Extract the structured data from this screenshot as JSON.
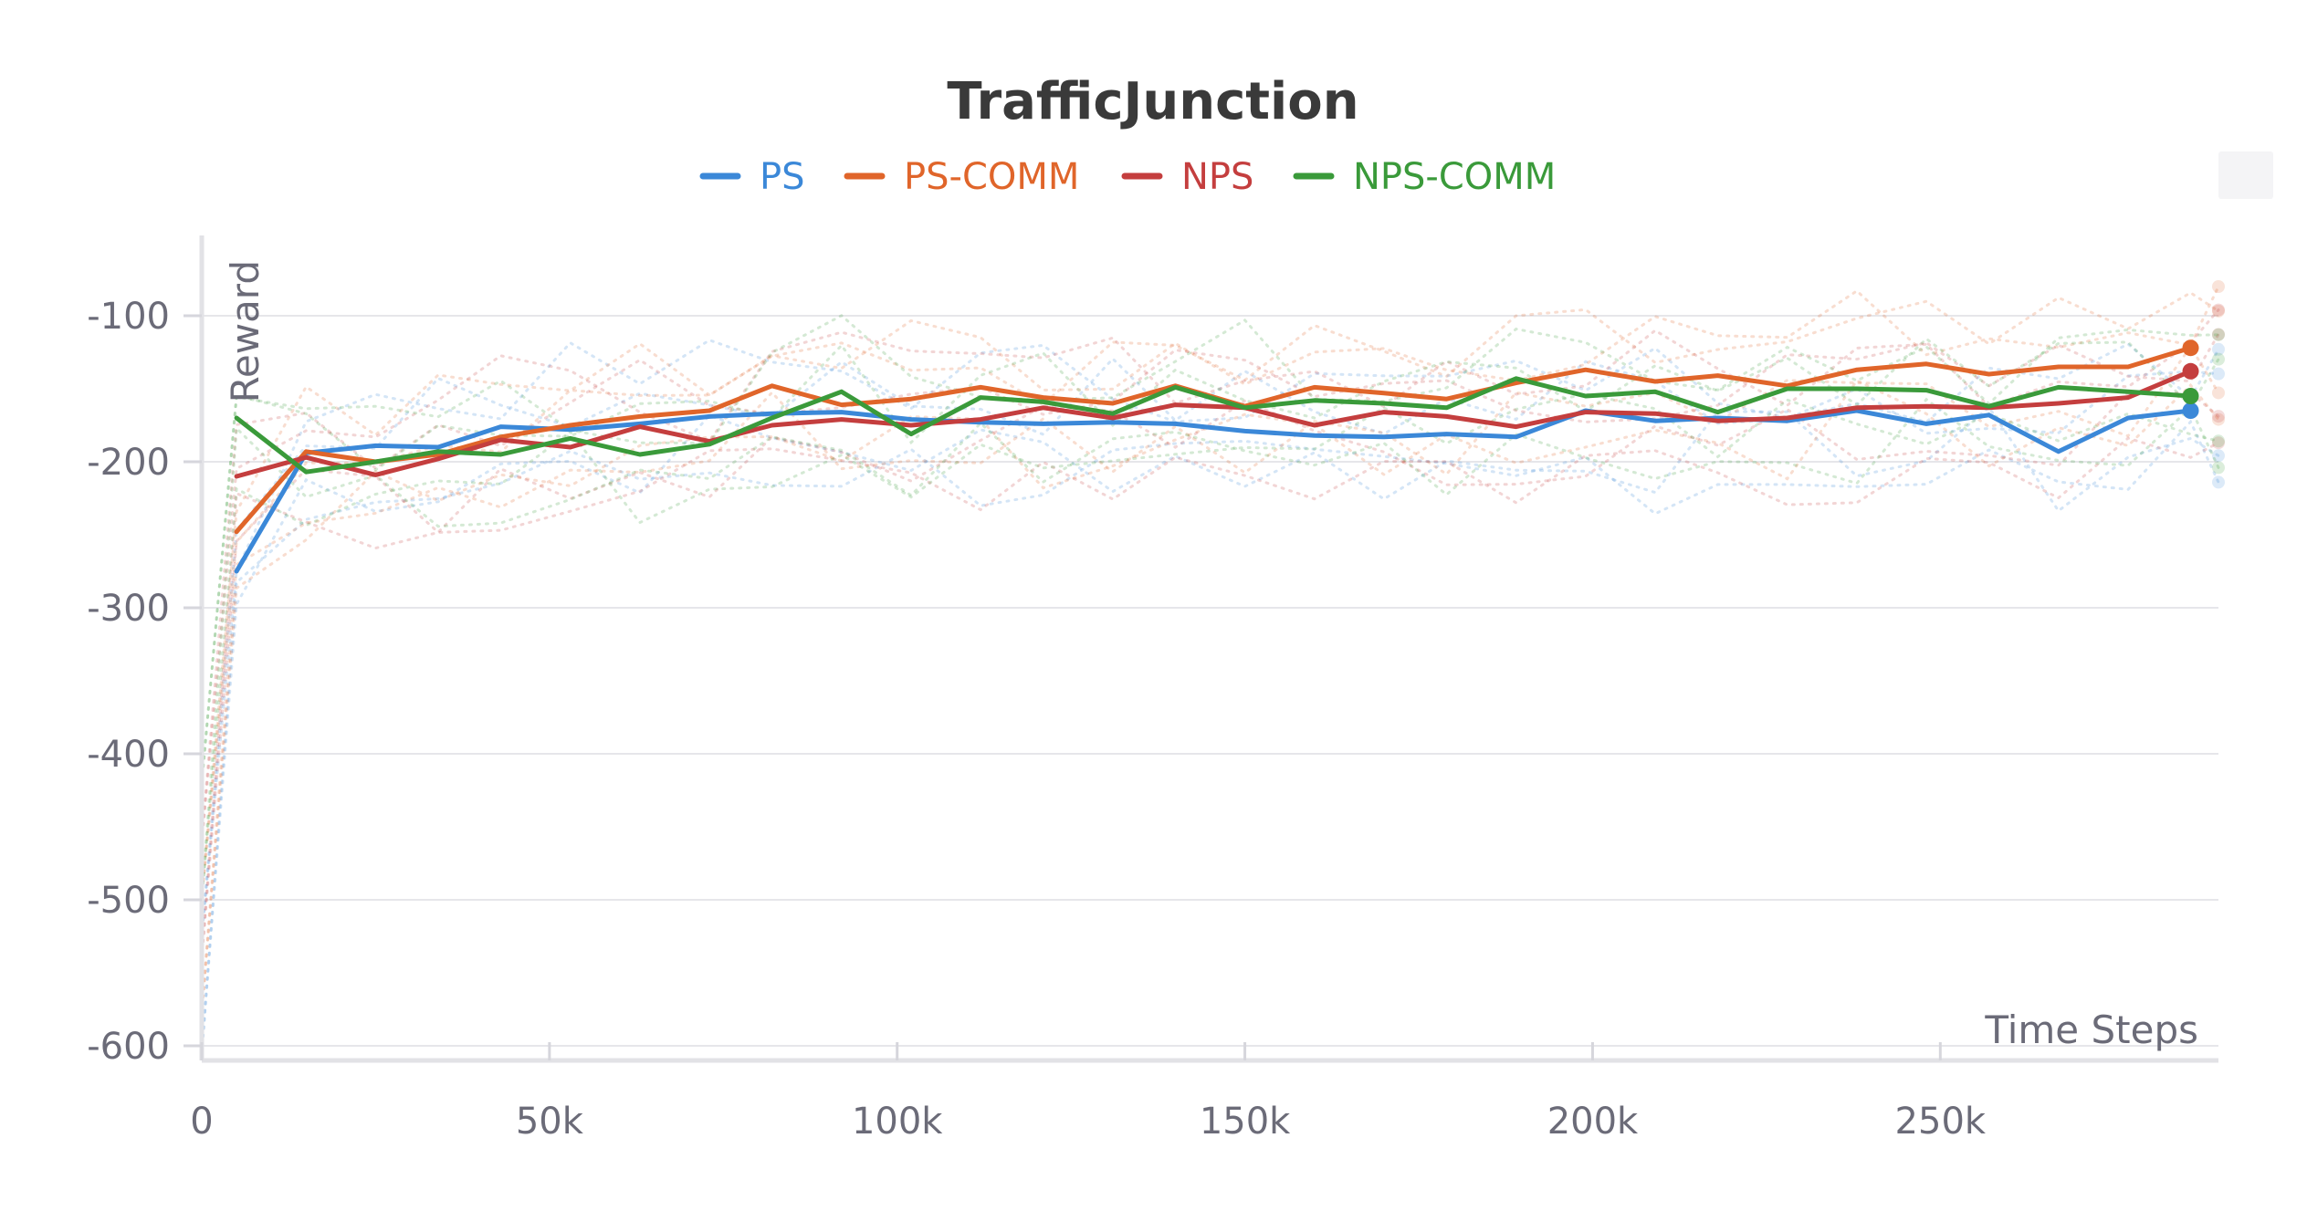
{
  "chart_data": {
    "type": "line",
    "title": "TrafficJunction",
    "xlabel": "Time Steps",
    "ylabel": "Reward",
    "xlim": [
      0,
      290000
    ],
    "ylim": [
      -610,
      -45
    ],
    "x_ticks": [
      0,
      50000,
      100000,
      150000,
      200000,
      250000
    ],
    "x_tick_labels": [
      "0",
      "50k",
      "100k",
      "150k",
      "200k",
      "250k"
    ],
    "y_ticks": [
      -100,
      -200,
      -300,
      -400,
      -500,
      -600
    ],
    "y_tick_labels": [
      "-100",
      "-200",
      "-300",
      "-400",
      "-500",
      "-600"
    ],
    "grid": true,
    "legend_position": "top-center",
    "x": [
      5000,
      15000,
      25000,
      34000,
      43000,
      53000,
      63000,
      73000,
      82000,
      92000,
      102000,
      112000,
      121000,
      131000,
      140000,
      150000,
      160000,
      170000,
      179000,
      189000,
      199000,
      209000,
      218000,
      228000,
      238000,
      248000,
      257000,
      267000,
      277000,
      286000
    ],
    "series": [
      {
        "name": "PS",
        "color": "#3b88d8",
        "values": [
          -275,
          -194,
          -189,
          -190,
          -176,
          -178,
          -174,
          -169,
          -167,
          -166,
          -171,
          -173,
          -174,
          -173,
          -174,
          -179,
          -182,
          -183,
          -181,
          -183,
          -165,
          -172,
          -170,
          -172,
          -165,
          -174,
          -168,
          -193,
          -170,
          -165
        ]
      },
      {
        "name": "PS-COMM",
        "color": "#e0652a",
        "values": [
          -248,
          -193,
          -200,
          -195,
          -183,
          -175,
          -169,
          -165,
          -148,
          -161,
          -157,
          -149,
          -156,
          -160,
          -148,
          -162,
          -149,
          -153,
          -157,
          -146,
          -137,
          -145,
          -141,
          -148,
          -137,
          -133,
          -140,
          -135,
          -135,
          -122
        ]
      },
      {
        "name": "NPS",
        "color": "#c43e3e",
        "values": [
          -210,
          -197,
          -209,
          -198,
          -185,
          -190,
          -176,
          -186,
          -175,
          -171,
          -175,
          -171,
          -163,
          -170,
          -161,
          -163,
          -175,
          -166,
          -169,
          -176,
          -166,
          -167,
          -172,
          -170,
          -163,
          -162,
          -163,
          -160,
          -156,
          -138
        ]
      },
      {
        "name": "NPS-COMM",
        "color": "#3a9a3a",
        "values": [
          -170,
          -207,
          -200,
          -193,
          -195,
          -184,
          -195,
          -188,
          -170,
          -152,
          -181,
          -156,
          -159,
          -167,
          -149,
          -163,
          -158,
          -160,
          -163,
          -143,
          -155,
          -152,
          -166,
          -150,
          -150,
          -151,
          -162,
          -149,
          -152,
          -155
        ]
      }
    ]
  }
}
